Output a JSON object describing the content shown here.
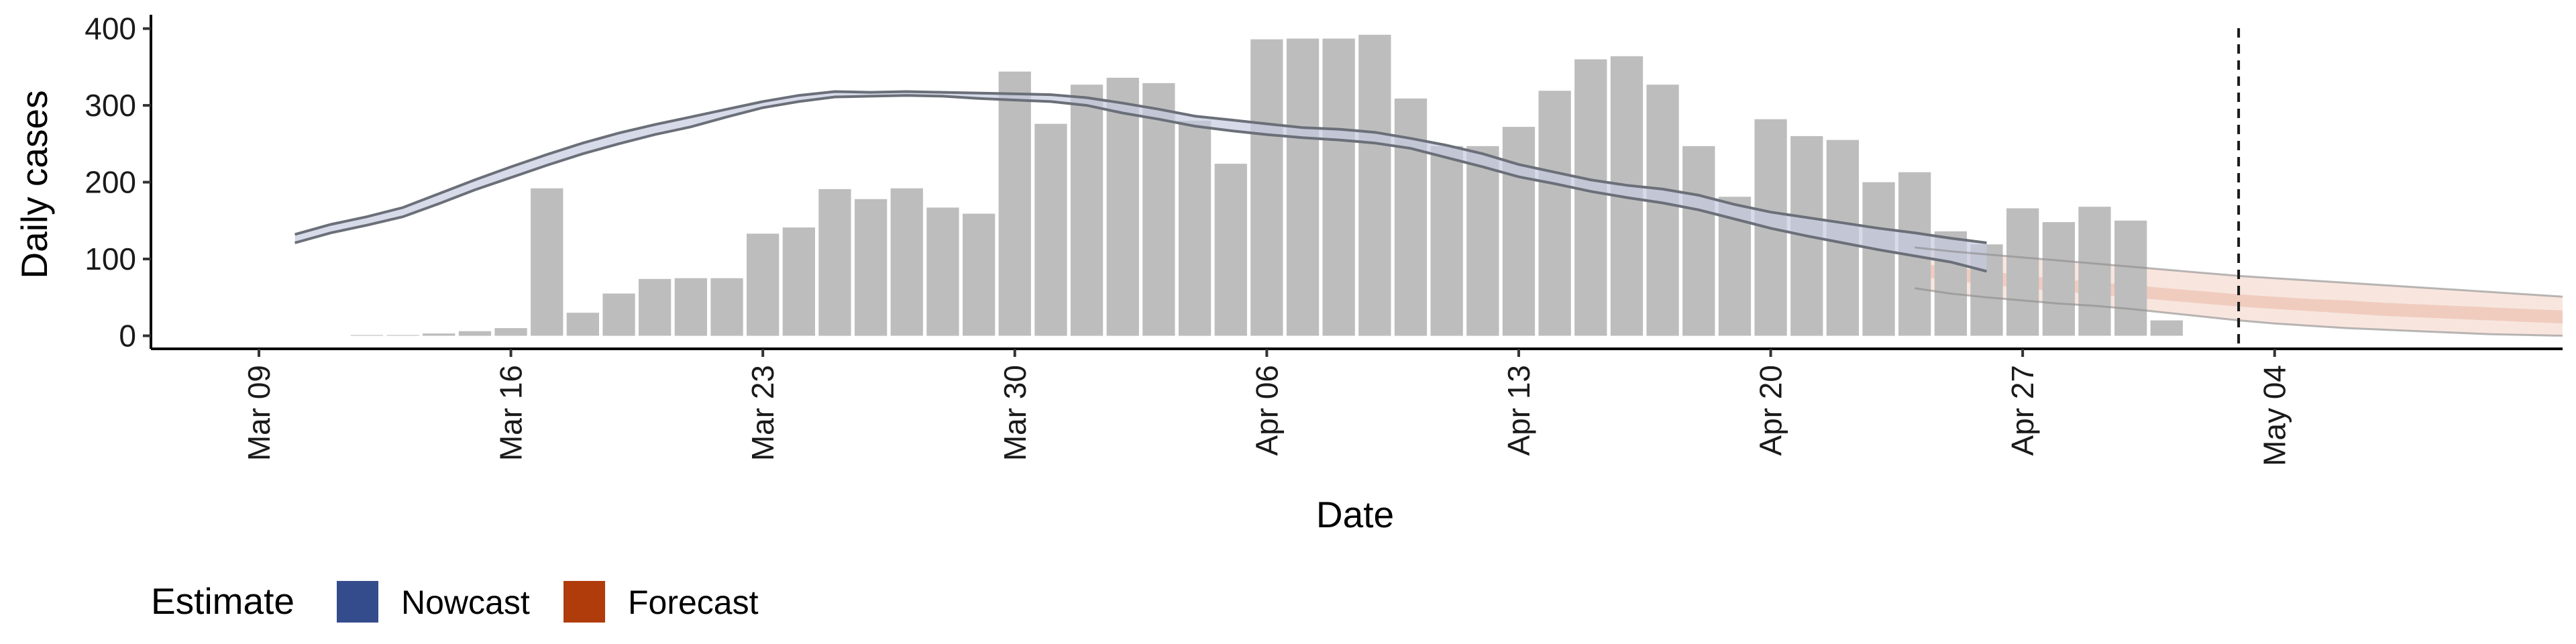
{
  "chart_data": {
    "type": "bar",
    "title": "",
    "xlabel": "Date",
    "ylabel": "Daily cases",
    "ylim": [
      -17,
      418
    ],
    "yticks": [
      0,
      100,
      200,
      300,
      400
    ],
    "xlim": [
      "2020-03-06",
      "2020-05-12"
    ],
    "xtick_labels": [
      "Mar 09",
      "Mar 16",
      "Mar 23",
      "Mar 30",
      "Apr 06",
      "Apr 13",
      "Apr 20",
      "Apr 27",
      "May 04"
    ],
    "xtick_dates": [
      "2020-03-09",
      "2020-03-16",
      "2020-03-23",
      "2020-03-30",
      "2020-04-06",
      "2020-04-13",
      "2020-04-20",
      "2020-04-27",
      "2020-05-04"
    ],
    "vline_date": "2020-05-03",
    "grid": false,
    "legend": {
      "title": "Estimate",
      "position": "bottom-left",
      "items": [
        {
          "label": "Nowcast",
          "color": "#354C8C"
        },
        {
          "label": "Forecast",
          "color": "#B03B0B"
        }
      ]
    },
    "colors": {
      "bars": "#BDBDBD",
      "nowcast_band": "#C5CBDF",
      "nowcast_edge": "#6A6F78",
      "forecast_outer": "#F5DDD3",
      "forecast_inner": "#EDC5B7",
      "forecast_edge": "#8A8A8A"
    },
    "bars": {
      "start_date": "2020-03-12",
      "values": [
        1,
        1,
        3,
        6,
        10,
        192,
        30,
        55,
        74,
        75,
        75,
        133,
        141,
        191,
        178,
        192,
        167,
        159,
        344,
        276,
        327,
        336,
        329,
        280,
        224,
        386,
        387,
        387,
        392,
        309,
        247,
        247,
        272,
        319,
        360,
        364,
        327,
        247,
        181,
        282,
        260,
        255,
        200,
        213,
        136,
        119,
        166,
        148,
        168,
        150,
        20
      ]
    },
    "nowcast": {
      "start_date": "2020-03-10",
      "upper": [
        132,
        145,
        155,
        167,
        185,
        203,
        220,
        236,
        251,
        264,
        275,
        285,
        295,
        305,
        313,
        318,
        317,
        318,
        317,
        316,
        315,
        314,
        310,
        303,
        295,
        286,
        281,
        276,
        271,
        269,
        265,
        257,
        248,
        237,
        223,
        213,
        203,
        196,
        191,
        183,
        171,
        161,
        154,
        147,
        140,
        134,
        127,
        121
      ],
      "lower": [
        121,
        134,
        144,
        155,
        172,
        190,
        206,
        222,
        237,
        250,
        262,
        272,
        285,
        297,
        305,
        311,
        312,
        313,
        312,
        309,
        307,
        305,
        300,
        290,
        282,
        273,
        267,
        262,
        258,
        255,
        251,
        244,
        232,
        220,
        207,
        198,
        188,
        180,
        173,
        164,
        152,
        140,
        130,
        121,
        112,
        104,
        96,
        84
      ]
    },
    "forecast": {
      "start_date": "2020-04-24",
      "upper": [
        115,
        110,
        106,
        102,
        98,
        94,
        90,
        86,
        82,
        78,
        75,
        72,
        69,
        66,
        63,
        60,
        57,
        54,
        51
      ],
      "lower": [
        62,
        55,
        50,
        46,
        42,
        39,
        35,
        30,
        25,
        20,
        16,
        13,
        10,
        8,
        6,
        4,
        2,
        1,
        0
      ],
      "inner_upper": [
        95,
        89,
        84,
        79,
        74,
        70,
        66,
        62,
        58,
        54,
        51,
        48,
        46,
        43,
        41,
        39,
        37,
        35,
        33
      ],
      "inner_lower": [
        78,
        72,
        67,
        62,
        58,
        54,
        50,
        46,
        42,
        38,
        35,
        32,
        29,
        26,
        24,
        22,
        20,
        18,
        16
      ]
    }
  }
}
